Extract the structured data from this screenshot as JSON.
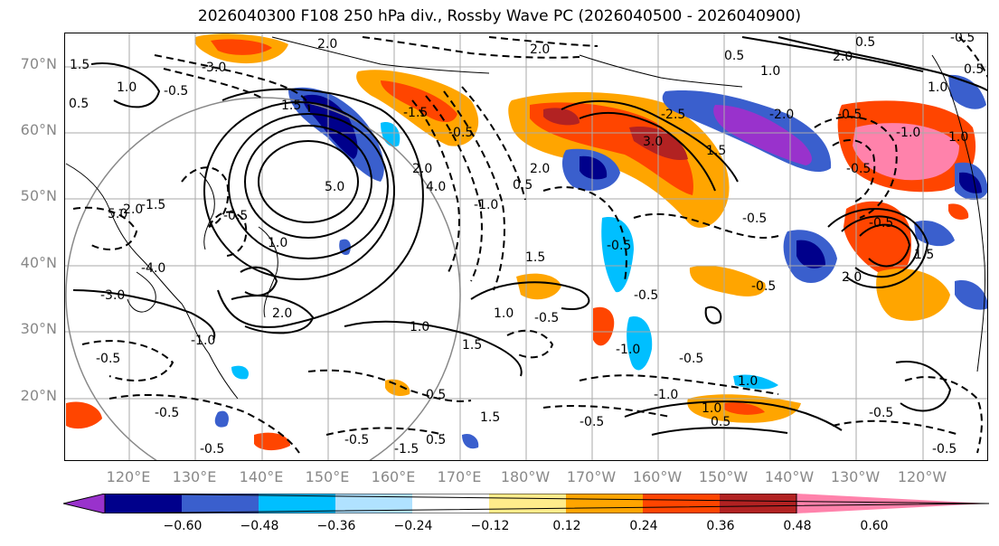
{
  "title": "2026040300 F108 250 hPa div., Rossby Wave PC (2026040500 - 2026040900)",
  "lat_labels": [
    "70°N",
    "60°N",
    "50°N",
    "40°N",
    "30°N",
    "20°N"
  ],
  "lon_labels": [
    "120°E",
    "130°E",
    "140°E",
    "150°E",
    "160°E",
    "170°E",
    "180°W",
    "170°W",
    "160°W",
    "150°W",
    "140°W",
    "130°W",
    "120°W"
  ],
  "colorbar": {
    "colors": [
      "#9932cc",
      "#00008b",
      "#3a5fcd",
      "#00bfff",
      "#b0e2ff",
      "#ffffff",
      "#ffec8b",
      "#ffa500",
      "#ff4500",
      "#b22222",
      "#ff82ab"
    ],
    "ticks": [
      "−0.60",
      "−0.48",
      "−0.36",
      "−0.24",
      "−0.12",
      "0.12",
      "0.24",
      "0.36",
      "0.48",
      "0.60"
    ]
  },
  "contour_labels": [
    "2.0",
    "2.0",
    "-3.0",
    "1.5",
    "1.0",
    "-0.5",
    "0.5",
    "1.5",
    "-1.5",
    "2.0",
    "0.5",
    "-0.5",
    "1.0",
    "5.0",
    "2.0",
    "4.0",
    "-1.0",
    "1.0",
    "0.5",
    "-0.5",
    "-2.0",
    "-2.5",
    "-0.5",
    "3.0",
    "1.5",
    "-0.5",
    "1.0",
    "2.0",
    "5.0",
    "-4.0",
    "-3.0",
    "-2.0",
    "1.0",
    "2.0",
    "-0.5",
    "-0.5",
    "-0.5",
    "1.0",
    "-1.0",
    "1.5",
    "-1.0",
    "-0.5",
    "1.0",
    "-0.5",
    "-0.5",
    "-1.5",
    "0.5",
    "1.5",
    "-0.5",
    "0.5",
    "-0.5",
    "-0.5",
    "-1.0",
    "1.0",
    "-0.5",
    "1.5",
    "2.0",
    "-1.5",
    "-0.5",
    "0.5",
    "1.0",
    "-0.5",
    "-0.5",
    "-0.5",
    "-1.0",
    "1.5",
    "-0.5",
    "0.5",
    "0.5"
  ]
}
